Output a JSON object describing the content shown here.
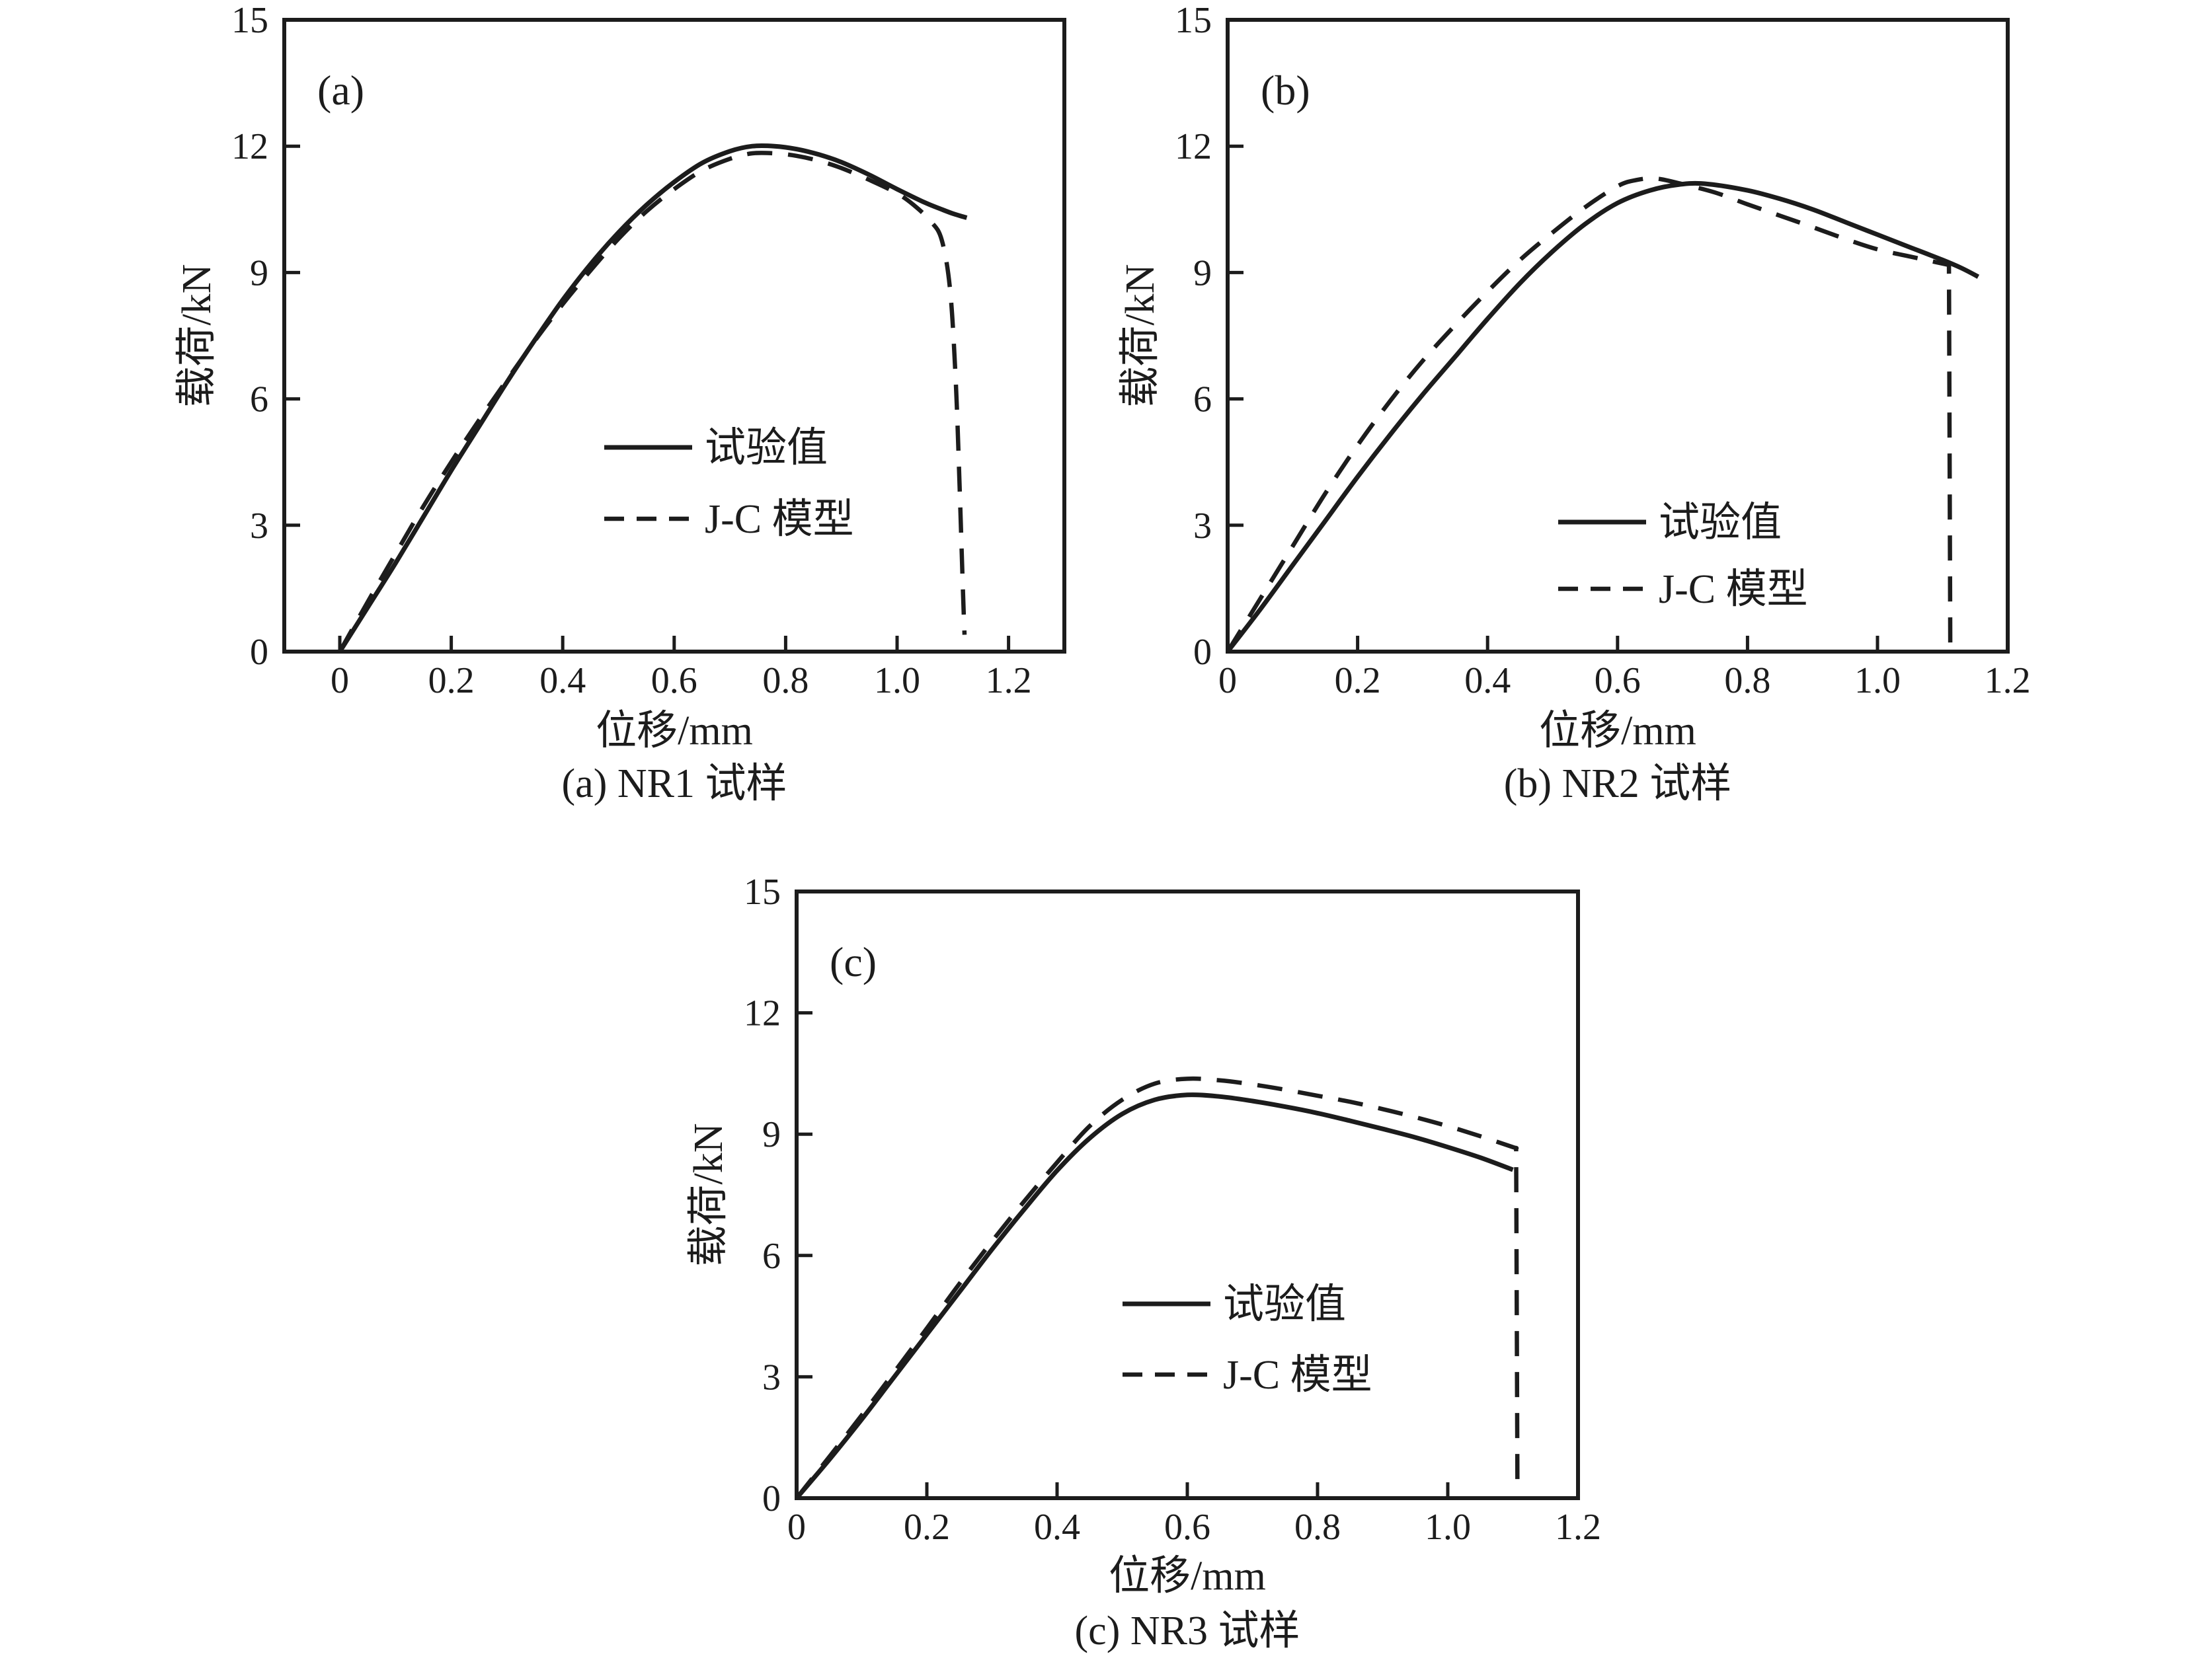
{
  "page": {
    "background": "#ffffff",
    "colors": {
      "line": "#1c1c1c"
    }
  },
  "chart_data": [
    {
      "type": "line",
      "panel_label": "(a)",
      "caption": "(a) NR1 试样",
      "xlabel": "位移/mm",
      "ylabel": "载荷/kN",
      "xlim": [
        -0.1,
        1.3
      ],
      "ylim": [
        0,
        15
      ],
      "grid": false,
      "legend_position": "inside-center-right",
      "x_ticks": [
        0,
        0.2,
        0.4,
        0.6,
        0.8,
        1.0,
        1.2
      ],
      "x_tick_labels": [
        "0",
        "0.2",
        "0.4",
        "0.6",
        "0.8",
        "1.0",
        "1.2"
      ],
      "y_ticks": [
        0,
        3,
        6,
        9,
        12,
        15
      ],
      "y_tick_labels": [
        "0",
        "3",
        "6",
        "9",
        "12",
        "15"
      ],
      "series": [
        {
          "name": "试验值",
          "style": "solid",
          "points": [
            [
              0,
              0
            ],
            [
              0.05,
              1.05
            ],
            [
              0.1,
              2.1
            ],
            [
              0.15,
              3.2
            ],
            [
              0.2,
              4.3
            ],
            [
              0.25,
              5.35
            ],
            [
              0.3,
              6.4
            ],
            [
              0.35,
              7.4
            ],
            [
              0.4,
              8.35
            ],
            [
              0.45,
              9.2
            ],
            [
              0.5,
              9.95
            ],
            [
              0.55,
              10.6
            ],
            [
              0.6,
              11.15
            ],
            [
              0.65,
              11.6
            ],
            [
              0.7,
              11.88
            ],
            [
              0.74,
              12.0
            ],
            [
              0.78,
              12.0
            ],
            [
              0.82,
              11.93
            ],
            [
              0.86,
              11.8
            ],
            [
              0.9,
              11.62
            ],
            [
              0.95,
              11.32
            ],
            [
              1.0,
              10.98
            ],
            [
              1.05,
              10.66
            ],
            [
              1.08,
              10.5
            ],
            [
              1.1,
              10.4
            ],
            [
              1.125,
              10.3
            ]
          ]
        },
        {
          "name": "J-C 模型",
          "style": "dashed",
          "points": [
            [
              0,
              0
            ],
            [
              0.05,
              1.18
            ],
            [
              0.1,
              2.32
            ],
            [
              0.15,
              3.45
            ],
            [
              0.2,
              4.5
            ],
            [
              0.25,
              5.5
            ],
            [
              0.3,
              6.45
            ],
            [
              0.35,
              7.38
            ],
            [
              0.4,
              8.25
            ],
            [
              0.45,
              9.05
            ],
            [
              0.5,
              9.8
            ],
            [
              0.55,
              10.45
            ],
            [
              0.6,
              10.98
            ],
            [
              0.65,
              11.42
            ],
            [
              0.7,
              11.7
            ],
            [
              0.74,
              11.83
            ],
            [
              0.78,
              11.83
            ],
            [
              0.82,
              11.77
            ],
            [
              0.86,
              11.65
            ],
            [
              0.9,
              11.48
            ],
            [
              0.95,
              11.2
            ],
            [
              1.0,
              10.88
            ],
            [
              1.03,
              10.6
            ],
            [
              1.06,
              10.22
            ],
            [
              1.08,
              9.78
            ],
            [
              1.095,
              8.6
            ],
            [
              1.105,
              6.5
            ],
            [
              1.112,
              4.0
            ],
            [
              1.118,
              1.5
            ],
            [
              1.121,
              0.4
            ]
          ]
        }
      ]
    },
    {
      "type": "line",
      "panel_label": "(b)",
      "caption": "(b) NR2 试样",
      "xlabel": "位移/mm",
      "ylabel": "载荷/kN",
      "xlim": [
        0,
        1.2
      ],
      "ylim": [
        0,
        15
      ],
      "grid": false,
      "legend_position": "inside-center-right",
      "x_ticks": [
        0,
        0.2,
        0.4,
        0.6,
        0.8,
        1.0,
        1.2
      ],
      "x_tick_labels": [
        "0",
        "0.2",
        "0.4",
        "0.6",
        "0.8",
        "1.0",
        "1.2"
      ],
      "y_ticks": [
        0,
        3,
        6,
        9,
        12,
        15
      ],
      "y_tick_labels": [
        "0",
        "3",
        "6",
        "9",
        "12",
        "15"
      ],
      "series": [
        {
          "name": "试验值",
          "style": "solid",
          "points": [
            [
              0,
              0
            ],
            [
              0.05,
              1.0
            ],
            [
              0.1,
              2.05
            ],
            [
              0.15,
              3.1
            ],
            [
              0.2,
              4.15
            ],
            [
              0.25,
              5.15
            ],
            [
              0.3,
              6.1
            ],
            [
              0.35,
              7.0
            ],
            [
              0.4,
              7.9
            ],
            [
              0.45,
              8.75
            ],
            [
              0.5,
              9.5
            ],
            [
              0.55,
              10.15
            ],
            [
              0.6,
              10.65
            ],
            [
              0.65,
              10.95
            ],
            [
              0.7,
              11.1
            ],
            [
              0.74,
              11.1
            ],
            [
              0.8,
              10.95
            ],
            [
              0.85,
              10.75
            ],
            [
              0.9,
              10.5
            ],
            [
              0.95,
              10.2
            ],
            [
              1.0,
              9.9
            ],
            [
              1.05,
              9.6
            ],
            [
              1.1,
              9.3
            ],
            [
              1.13,
              9.1
            ],
            [
              1.155,
              8.9
            ]
          ]
        },
        {
          "name": "J-C 模型",
          "style": "dashed",
          "points": [
            [
              0,
              0
            ],
            [
              0.05,
              1.25
            ],
            [
              0.1,
              2.5
            ],
            [
              0.15,
              3.75
            ],
            [
              0.2,
              4.9
            ],
            [
              0.25,
              5.95
            ],
            [
              0.3,
              6.9
            ],
            [
              0.35,
              7.75
            ],
            [
              0.4,
              8.55
            ],
            [
              0.45,
              9.3
            ],
            [
              0.5,
              9.95
            ],
            [
              0.55,
              10.55
            ],
            [
              0.6,
              11.05
            ],
            [
              0.63,
              11.2
            ],
            [
              0.66,
              11.23
            ],
            [
              0.7,
              11.1
            ],
            [
              0.75,
              10.9
            ],
            [
              0.8,
              10.62
            ],
            [
              0.85,
              10.35
            ],
            [
              0.9,
              10.08
            ],
            [
              0.95,
              9.8
            ],
            [
              1.0,
              9.55
            ],
            [
              1.05,
              9.38
            ],
            [
              1.08,
              9.28
            ],
            [
              1.11,
              9.18
            ],
            [
              1.112,
              0.15
            ]
          ]
        }
      ]
    },
    {
      "type": "line",
      "panel_label": "(c)",
      "caption": "(c) NR3 试样",
      "xlabel": "位移/mm",
      "ylabel": "载荷/kN",
      "xlim": [
        0,
        1.2
      ],
      "ylim": [
        0,
        15
      ],
      "grid": false,
      "legend_position": "inside-center-right",
      "x_ticks": [
        0,
        0.2,
        0.4,
        0.6,
        0.8,
        1.0,
        1.2
      ],
      "x_tick_labels": [
        "0",
        "0.2",
        "0.4",
        "0.6",
        "0.8",
        "1.0",
        "1.2"
      ],
      "y_ticks": [
        0,
        3,
        6,
        9,
        12,
        15
      ],
      "y_tick_labels": [
        "0",
        "3",
        "6",
        "9",
        "12",
        "15"
      ],
      "series": [
        {
          "name": "试验值",
          "style": "solid",
          "points": [
            [
              0,
              0
            ],
            [
              0.05,
              0.95
            ],
            [
              0.1,
              1.95
            ],
            [
              0.15,
              3.0
            ],
            [
              0.2,
              4.05
            ],
            [
              0.25,
              5.1
            ],
            [
              0.3,
              6.15
            ],
            [
              0.35,
              7.15
            ],
            [
              0.4,
              8.1
            ],
            [
              0.45,
              8.9
            ],
            [
              0.5,
              9.5
            ],
            [
              0.55,
              9.85
            ],
            [
              0.6,
              9.97
            ],
            [
              0.65,
              9.93
            ],
            [
              0.7,
              9.82
            ],
            [
              0.75,
              9.68
            ],
            [
              0.8,
              9.52
            ],
            [
              0.85,
              9.33
            ],
            [
              0.9,
              9.13
            ],
            [
              0.95,
              8.92
            ],
            [
              1.0,
              8.68
            ],
            [
              1.05,
              8.42
            ],
            [
              1.1,
              8.12
            ]
          ]
        },
        {
          "name": "J-C 模型",
          "style": "dashed",
          "points": [
            [
              0,
              0
            ],
            [
              0.05,
              1.02
            ],
            [
              0.1,
              2.05
            ],
            [
              0.15,
              3.12
            ],
            [
              0.2,
              4.2
            ],
            [
              0.25,
              5.3
            ],
            [
              0.3,
              6.35
            ],
            [
              0.35,
              7.35
            ],
            [
              0.4,
              8.3
            ],
            [
              0.45,
              9.2
            ],
            [
              0.5,
              9.85
            ],
            [
              0.55,
              10.25
            ],
            [
              0.6,
              10.37
            ],
            [
              0.65,
              10.33
            ],
            [
              0.7,
              10.23
            ],
            [
              0.75,
              10.1
            ],
            [
              0.8,
              9.95
            ],
            [
              0.85,
              9.8
            ],
            [
              0.9,
              9.62
            ],
            [
              0.95,
              9.42
            ],
            [
              1.0,
              9.2
            ],
            [
              1.05,
              8.95
            ],
            [
              1.1,
              8.68
            ],
            [
              1.105,
              8.66
            ],
            [
              1.107,
              0.1
            ]
          ]
        }
      ]
    }
  ]
}
